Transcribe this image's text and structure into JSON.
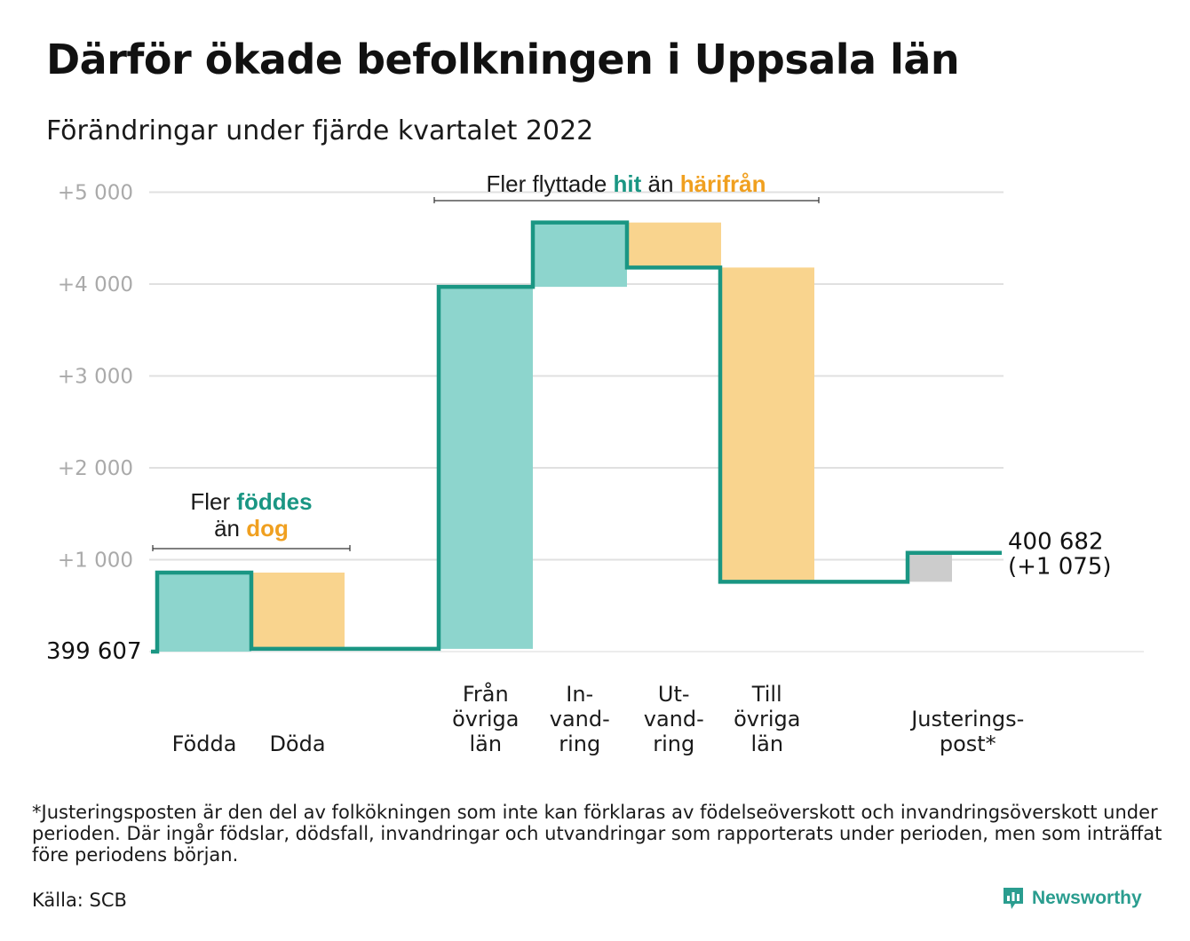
{
  "header": {
    "title": "Därför ökade befolkningen i Uppsala län",
    "subtitle": "Förändringar under fjärde kvartalet 2022"
  },
  "colors": {
    "positive": "#8dd5cd",
    "negative": "#f9d48e",
    "adjustment": "#cccccc",
    "line": "#1a9683",
    "teal_text": "#1a9683",
    "orange_text": "#f0a020",
    "grid": "#e0e0e0",
    "tick_text": "#aaaaaa"
  },
  "annotations": {
    "births": {
      "line1_pre": "Fler ",
      "line1_hl": "föddes",
      "line2_pre": "än ",
      "line2_hl": "dog"
    },
    "migration": {
      "pre": "Fler flyttade ",
      "hl1": "hit",
      "mid": " än ",
      "hl2": "härifrån"
    }
  },
  "chart_data": {
    "type": "waterfall",
    "start_value": 399607,
    "start_label": "399 607",
    "end_label": "400 682",
    "end_change_label": "(+1 075)",
    "ylim": [
      0,
      5000
    ],
    "ticks": [
      {
        "value": 1000,
        "label": "+1 000"
      },
      {
        "value": 2000,
        "label": "+2 000"
      },
      {
        "value": 3000,
        "label": "+3 000"
      },
      {
        "value": 4000,
        "label": "+4 000"
      },
      {
        "value": 5000,
        "label": "+5 000"
      }
    ],
    "steps": [
      {
        "category": [
          "Födda"
        ],
        "change": 860,
        "kind": "positive"
      },
      {
        "category": [
          "Döda"
        ],
        "change": -830,
        "kind": "negative"
      },
      {
        "category": [
          "Från",
          "övriga",
          "län"
        ],
        "change": 3940,
        "kind": "positive"
      },
      {
        "category": [
          "In-",
          "vand-",
          "ring"
        ],
        "change": 700,
        "kind": "positive"
      },
      {
        "category": [
          "Ut-",
          "vand-",
          "ring"
        ],
        "change": -490,
        "kind": "negative"
      },
      {
        "category": [
          "Till",
          "övriga",
          "län"
        ],
        "change": -3420,
        "kind": "negative"
      },
      {
        "category": [
          "Justerings-",
          "post*"
        ],
        "change": 315,
        "kind": "adjustment"
      }
    ],
    "cumulative": [
      0,
      860,
      30,
      3970,
      4670,
      4180,
      760,
      1075
    ],
    "grid": true
  },
  "footer": {
    "footnote": "*Justeringsposten är den del av folkökningen som inte kan förklaras av födelseöverskott och invandringsöverskott under perioden. Där ingår födslar, dödsfall, invandringar och utvandringar som rapporterats under perioden, men som inträffat före periodens början.",
    "source": "Källa: SCB",
    "brand": "Newsworthy"
  }
}
